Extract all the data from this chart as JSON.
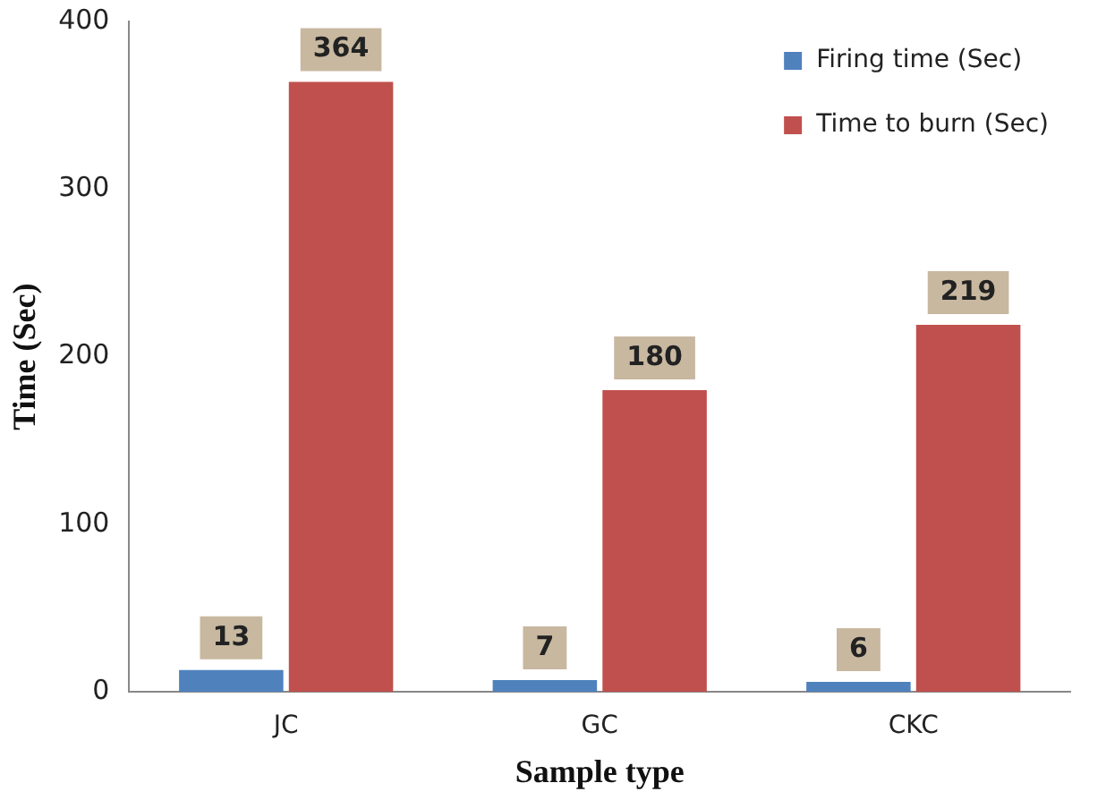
{
  "chart_data": {
    "type": "bar",
    "xlabel": "Sample type",
    "ylabel": "Time (Sec)",
    "categories": [
      "JC",
      "GC",
      "CKC"
    ],
    "series": [
      {
        "name": "Firing time (Sec)",
        "color": "#4f81bd",
        "values": [
          13,
          7,
          6
        ]
      },
      {
        "name": "Time to burn (Sec)",
        "color": "#c0504d",
        "values": [
          364,
          180,
          219
        ]
      }
    ],
    "ylim": [
      0,
      400
    ],
    "yticks": [
      0,
      100,
      200,
      300,
      400
    ],
    "data_labels": true,
    "legend": "top right"
  }
}
